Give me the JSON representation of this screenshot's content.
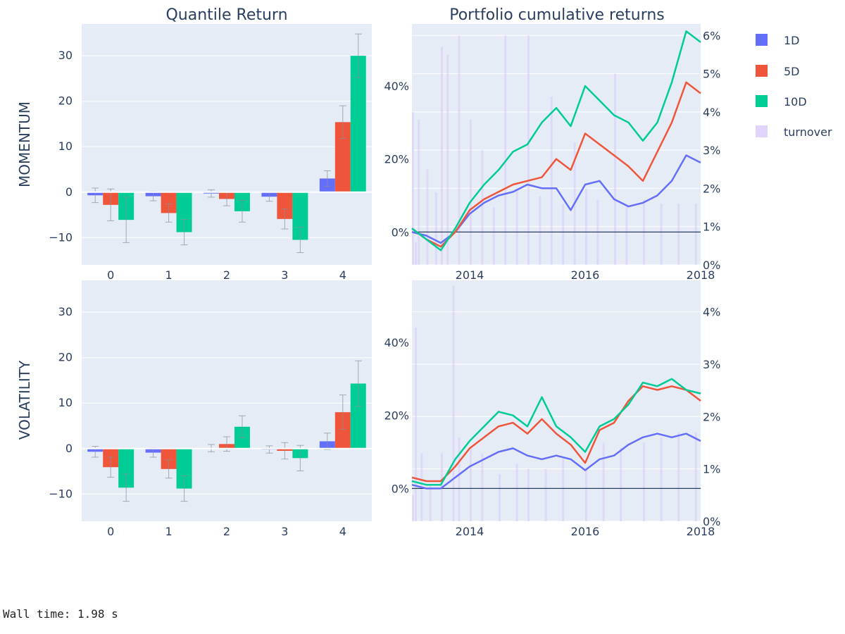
{
  "subplot_titles": [
    "Quantile Return",
    "Portfolio cumulative returns"
  ],
  "row_labels": [
    "MOMENTUM",
    "VOLATILITY"
  ],
  "legend": [
    {
      "name": "1D",
      "color": "#636efa"
    },
    {
      "name": "5D",
      "color": "#ef553b"
    },
    {
      "name": "10D",
      "color": "#00cc96"
    },
    {
      "name": "turnover",
      "color": "#e0d4fa"
    }
  ],
  "footer": "Wall time: 1.98 s",
  "chart_data": [
    {
      "id": "momentum-quantile",
      "type": "bar",
      "categories": [
        "0",
        "1",
        "2",
        "3",
        "4"
      ],
      "y_range": [
        -16,
        37
      ],
      "y_ticks": [
        -10,
        0,
        10,
        20,
        30
      ],
      "series": [
        {
          "name": "1D",
          "values": [
            -0.7,
            -0.9,
            -0.3,
            -1.0,
            3.0
          ],
          "errors": [
            1.6,
            1.0,
            0.8,
            1.0,
            1.7
          ]
        },
        {
          "name": "5D",
          "values": [
            -2.8,
            -4.6,
            -1.5,
            -5.9,
            15.4
          ],
          "errors": [
            3.5,
            2.0,
            1.5,
            2.2,
            3.6
          ]
        },
        {
          "name": "10D",
          "values": [
            -6.1,
            -8.8,
            -4.2,
            -10.5,
            30.0
          ],
          "errors": [
            5.0,
            2.8,
            2.4,
            2.8,
            4.8
          ]
        }
      ]
    },
    {
      "id": "momentum-cumulative",
      "type": "line",
      "x_range": [
        2013.0,
        2018.0
      ],
      "x_ticks": [
        2014,
        2016,
        2018
      ],
      "y_range": [
        -9,
        57
      ],
      "y_ticks": [
        0,
        20,
        40
      ],
      "y_suffix": "%",
      "y2_range": [
        0,
        6.3
      ],
      "y2_ticks": [
        0,
        1,
        2,
        3,
        4,
        5,
        6
      ],
      "y2_suffix": "%",
      "series": [
        {
          "name": "1D",
          "x": [
            2013.0,
            2013.25,
            2013.5,
            2013.75,
            2014.0,
            2014.25,
            2014.5,
            2014.75,
            2015.0,
            2015.25,
            2015.5,
            2015.75,
            2016.0,
            2016.25,
            2016.5,
            2016.75,
            2017.0,
            2017.25,
            2017.5,
            2017.75,
            2018.0
          ],
          "y": [
            0,
            -1,
            -3,
            0,
            5,
            8,
            10,
            11,
            13,
            12,
            12,
            6,
            13,
            14,
            9,
            7,
            8,
            10,
            14,
            21,
            19
          ]
        },
        {
          "name": "5D",
          "x": [
            2013.0,
            2013.25,
            2013.5,
            2013.75,
            2014.0,
            2014.25,
            2014.5,
            2014.75,
            2015.0,
            2015.25,
            2015.5,
            2015.75,
            2016.0,
            2016.25,
            2016.5,
            2016.75,
            2017.0,
            2017.25,
            2017.5,
            2017.75,
            2018.0
          ],
          "y": [
            1,
            -2,
            -4,
            0,
            6,
            9,
            11,
            13,
            14,
            15,
            20,
            17,
            27,
            24,
            21,
            18,
            14,
            22,
            30,
            41,
            38
          ]
        },
        {
          "name": "10D",
          "x": [
            2013.0,
            2013.25,
            2013.5,
            2013.75,
            2014.0,
            2014.25,
            2014.5,
            2014.75,
            2015.0,
            2015.25,
            2015.5,
            2015.75,
            2016.0,
            2016.25,
            2016.5,
            2016.75,
            2017.0,
            2017.25,
            2017.5,
            2017.75,
            2018.0
          ],
          "y": [
            1,
            -2,
            -5,
            1,
            8,
            13,
            17,
            22,
            24,
            30,
            34,
            29,
            40,
            36,
            32,
            30,
            25,
            30,
            41,
            55,
            52
          ]
        }
      ],
      "turnover": {
        "name": "turnover",
        "x": [
          2013.0,
          2013.05,
          2013.1,
          2013.25,
          2013.4,
          2013.5,
          2013.6,
          2013.8,
          2014.0,
          2014.2,
          2014.4,
          2014.6,
          2014.8,
          2015.0,
          2015.2,
          2015.4,
          2015.6,
          2015.8,
          2016.0,
          2016.2,
          2016.5,
          2016.7,
          2017.0,
          2017.3,
          2017.6,
          2017.9
        ],
        "y": [
          4.0,
          0.6,
          3.8,
          2.5,
          1.9,
          5.7,
          5.5,
          6.0,
          3.8,
          3.0,
          1.5,
          6.0,
          2.0,
          6.0,
          1.8,
          4.4,
          1.6,
          3.2,
          2.0,
          1.7,
          5.0,
          1.5,
          1.7,
          1.6,
          1.6,
          1.6
        ]
      }
    },
    {
      "id": "volatility-quantile",
      "type": "bar",
      "categories": [
        "0",
        "1",
        "2",
        "3",
        "4"
      ],
      "y_range": [
        -16,
        37
      ],
      "y_ticks": [
        -10,
        0,
        10,
        20,
        30
      ],
      "series": [
        {
          "name": "1D",
          "values": [
            -0.7,
            -0.9,
            0.1,
            -0.2,
            1.6
          ],
          "errors": [
            1.2,
            1.0,
            0.8,
            0.8,
            1.8
          ]
        },
        {
          "name": "5D",
          "values": [
            -4.1,
            -4.5,
            1.0,
            -0.5,
            8.0
          ],
          "errors": [
            2.2,
            2.0,
            1.6,
            1.8,
            3.8
          ]
        },
        {
          "name": "10D",
          "values": [
            -8.6,
            -8.8,
            4.8,
            -2.1,
            14.3
          ],
          "errors": [
            3.0,
            2.8,
            2.4,
            2.8,
            5.0
          ]
        }
      ]
    },
    {
      "id": "volatility-cumulative",
      "type": "line",
      "x_range": [
        2013.0,
        2018.0
      ],
      "x_ticks": [
        2014,
        2016,
        2018
      ],
      "y_range": [
        -9,
        57
      ],
      "y_ticks": [
        0,
        20,
        40
      ],
      "y_suffix": "%",
      "y2_range": [
        0,
        4.6
      ],
      "y2_ticks": [
        0,
        1,
        2,
        3,
        4
      ],
      "y2_suffix": "%",
      "series": [
        {
          "name": "1D",
          "x": [
            2013.0,
            2013.25,
            2013.5,
            2013.75,
            2014.0,
            2014.25,
            2014.5,
            2014.75,
            2015.0,
            2015.25,
            2015.5,
            2015.75,
            2016.0,
            2016.25,
            2016.5,
            2016.75,
            2017.0,
            2017.25,
            2017.5,
            2017.75,
            2018.0
          ],
          "y": [
            1,
            0,
            0,
            3,
            6,
            8,
            10,
            11,
            9,
            8,
            9,
            8,
            5,
            8,
            9,
            12,
            14,
            15,
            14,
            15,
            13
          ]
        },
        {
          "name": "5D",
          "x": [
            2013.0,
            2013.25,
            2013.5,
            2013.75,
            2014.0,
            2014.25,
            2014.5,
            2014.75,
            2015.0,
            2015.25,
            2015.5,
            2015.75,
            2016.0,
            2016.25,
            2016.5,
            2016.75,
            2017.0,
            2017.25,
            2017.5,
            2017.75,
            2018.0
          ],
          "y": [
            3,
            2,
            2,
            6,
            11,
            14,
            17,
            18,
            15,
            19,
            15,
            12,
            7,
            16,
            18,
            24,
            28,
            27,
            28,
            27,
            24
          ]
        },
        {
          "name": "10D",
          "x": [
            2013.0,
            2013.25,
            2013.5,
            2013.75,
            2014.0,
            2014.25,
            2014.5,
            2014.75,
            2015.0,
            2015.25,
            2015.5,
            2015.75,
            2016.0,
            2016.25,
            2016.5,
            2016.75,
            2017.0,
            2017.25,
            2017.5,
            2017.75,
            2018.0
          ],
          "y": [
            2,
            1,
            1,
            8,
            13,
            17,
            21,
            20,
            17,
            25,
            17,
            14,
            10,
            17,
            19,
            23,
            29,
            28,
            30,
            27,
            26
          ]
        }
      ],
      "turnover": {
        "name": "turnover",
        "x": [
          2013.0,
          2013.05,
          2013.15,
          2013.3,
          2013.5,
          2013.7,
          2013.8,
          2014.0,
          2014.2,
          2014.5,
          2014.8,
          2015.0,
          2015.3,
          2015.6,
          2016.0,
          2016.3,
          2016.6,
          2017.0,
          2017.3,
          2017.6,
          2017.9
        ],
        "y": [
          0.5,
          3.7,
          1.3,
          0.7,
          1.3,
          4.5,
          1.6,
          1.4,
          1.3,
          0.9,
          1.1,
          1.0,
          1.0,
          1.2,
          1.0,
          1.5,
          1.4,
          1.5,
          1.6,
          1.7,
          1.7
        ]
      }
    }
  ]
}
